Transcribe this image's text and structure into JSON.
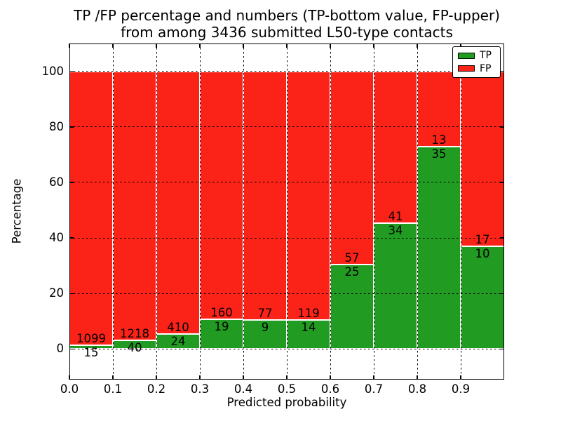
{
  "title": {
    "line1": "TP /FP percentage and numbers (TP-bottom value, FP-upper)",
    "line2": "from among 3436 submitted L50-type contacts"
  },
  "axes": {
    "xlabel": "Predicted probability",
    "ylabel": "Percentage",
    "x_tick_labels": [
      "0.0",
      "0.1",
      "0.2",
      "0.3",
      "0.4",
      "0.5",
      "0.6",
      "0.7",
      "0.8",
      "0.9"
    ],
    "x_tick_values": [
      0,
      0.1,
      0.2,
      0.3,
      0.4,
      0.5,
      0.6,
      0.7,
      0.8,
      0.9
    ],
    "y_tick_labels": [
      "0",
      "20",
      "40",
      "60",
      "80",
      "100"
    ],
    "y_tick_values": [
      0,
      20,
      40,
      60,
      80,
      100
    ]
  },
  "legend": {
    "items": [
      {
        "label": "TP",
        "color": "#229b22"
      },
      {
        "label": "FP",
        "color": "#fb2318"
      }
    ]
  },
  "chart_data": {
    "type": "bar",
    "stacked": true,
    "normalized_to_percent": true,
    "title": "TP /FP percentage and numbers (TP-bottom value, FP-upper) from among 3436 submitted L50-type contacts",
    "xlabel": "Predicted probability",
    "ylabel": "Percentage",
    "bins": [
      0.0,
      0.1,
      0.2,
      0.3,
      0.4,
      0.5,
      0.6,
      0.7,
      0.8,
      0.9
    ],
    "bin_width": 0.1,
    "series": [
      {
        "name": "TP",
        "color": "#229b22",
        "counts": [
          15,
          40,
          24,
          19,
          9,
          14,
          25,
          34,
          35,
          10
        ]
      },
      {
        "name": "FP",
        "color": "#fb2318",
        "counts": [
          1099,
          1218,
          410,
          160,
          77,
          119,
          57,
          41,
          13,
          17
        ]
      }
    ],
    "tp_percent_of_bin": [
      1.35,
      3.18,
      5.53,
      10.61,
      10.47,
      10.53,
      30.49,
      45.33,
      72.92,
      37.04
    ],
    "total_contacts": 3436,
    "xlim": [
      0,
      1
    ],
    "ylim": [
      -11,
      110
    ],
    "grid": true,
    "grid_style": "dotted",
    "legend_position": "upper right"
  }
}
